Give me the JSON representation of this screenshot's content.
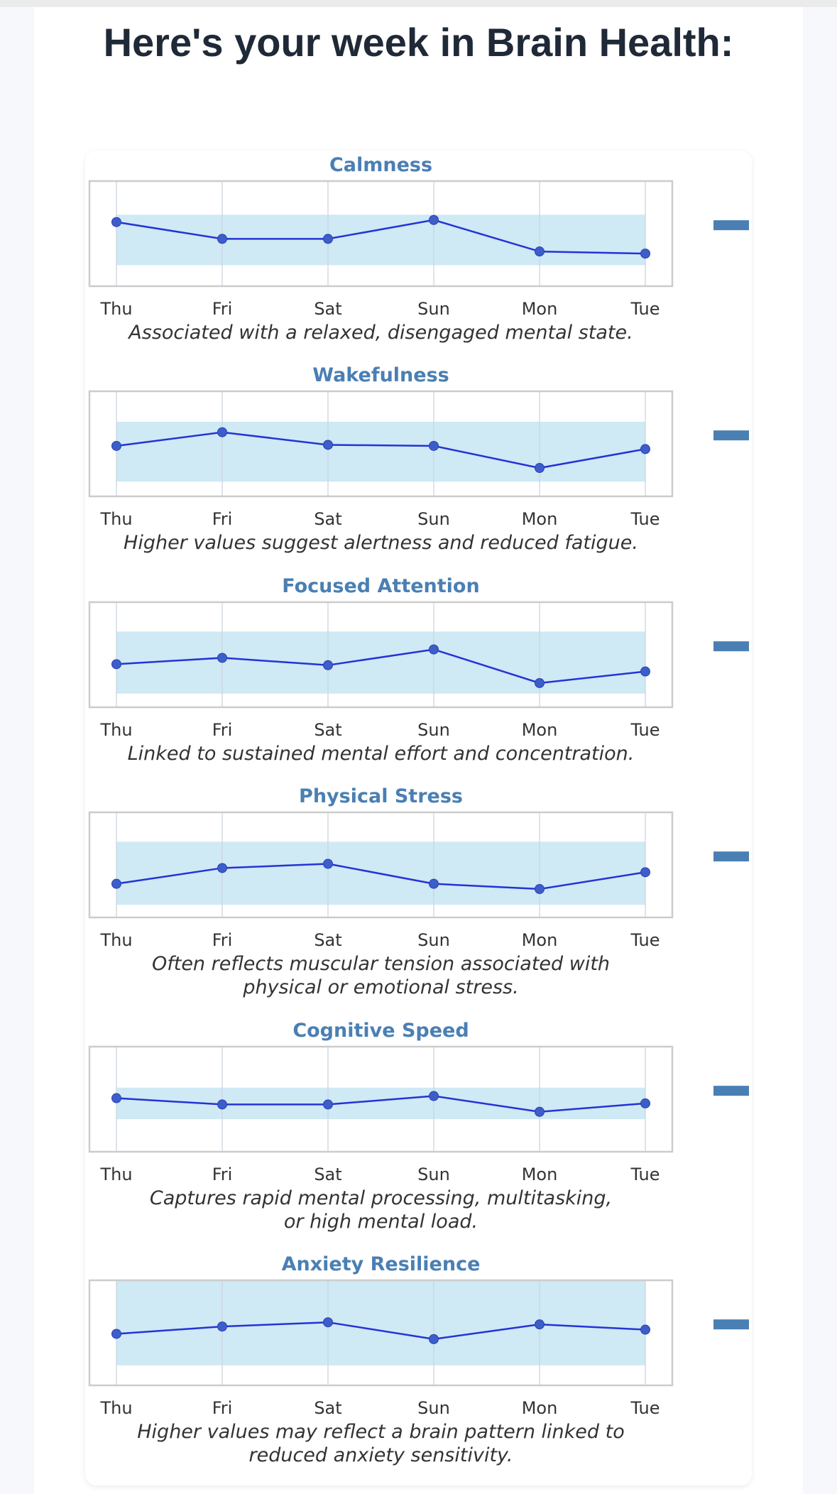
{
  "header": {
    "title": "Here's your week in Brain Health:"
  },
  "colors": {
    "title": "#4a7fb3",
    "line": "#2533d6",
    "band": "#cfe9f5",
    "indicator": "#4a7fb3"
  },
  "chart_data": [
    {
      "type": "line",
      "title": "Calmness",
      "categories": [
        "Thu",
        "Fri",
        "Sat",
        "Sun",
        "Mon",
        "Tue"
      ],
      "values": [
        0.61,
        0.45,
        0.45,
        0.63,
        0.33,
        0.31
      ],
      "band": [
        0.2,
        0.68
      ],
      "ylim": [
        0,
        1
      ],
      "description": [
        "Associated with a relaxed, disengaged mental state."
      ]
    },
    {
      "type": "line",
      "title": "Wakefulness",
      "categories": [
        "Thu",
        "Fri",
        "Sat",
        "Sun",
        "Mon",
        "Tue"
      ],
      "values": [
        0.48,
        0.61,
        0.49,
        0.48,
        0.27,
        0.45
      ],
      "band": [
        0.14,
        0.71
      ],
      "ylim": [
        0,
        1
      ],
      "description": [
        "Higher values suggest alertness and reduced fatigue."
      ]
    },
    {
      "type": "line",
      "title": "Focused Attention",
      "categories": [
        "Thu",
        "Fri",
        "Sat",
        "Sun",
        "Mon",
        "Tue"
      ],
      "values": [
        0.41,
        0.47,
        0.4,
        0.55,
        0.23,
        0.34
      ],
      "band": [
        0.13,
        0.72
      ],
      "ylim": [
        0,
        1
      ],
      "description": [
        "Linked to sustained mental effort and concentration."
      ]
    },
    {
      "type": "line",
      "title": "Physical Stress",
      "categories": [
        "Thu",
        "Fri",
        "Sat",
        "Sun",
        "Mon",
        "Tue"
      ],
      "values": [
        0.32,
        0.47,
        0.51,
        0.32,
        0.27,
        0.43
      ],
      "band": [
        0.12,
        0.72
      ],
      "ylim": [
        0,
        1
      ],
      "description": [
        "Often reflects muscular tension associated with",
        "physical or emotional stress."
      ]
    },
    {
      "type": "line",
      "title": "Cognitive Speed",
      "categories": [
        "Thu",
        "Fri",
        "Sat",
        "Sun",
        "Mon",
        "Tue"
      ],
      "values": [
        0.51,
        0.45,
        0.45,
        0.53,
        0.38,
        0.46
      ],
      "band": [
        0.31,
        0.61
      ],
      "ylim": [
        0,
        1
      ],
      "description": [
        "Captures rapid mental processing, multitasking,",
        "or high mental load."
      ]
    },
    {
      "type": "line",
      "title": "Anxiety Resilience",
      "categories": [
        "Thu",
        "Fri",
        "Sat",
        "Sun",
        "Mon",
        "Tue"
      ],
      "values": [
        0.49,
        0.56,
        0.6,
        0.44,
        0.58,
        0.53
      ],
      "band": [
        0.19,
        1.0
      ],
      "ylim": [
        0,
        1
      ],
      "description": [
        "Higher values may reflect a brain pattern linked to",
        "reduced anxiety sensitivity."
      ]
    }
  ]
}
